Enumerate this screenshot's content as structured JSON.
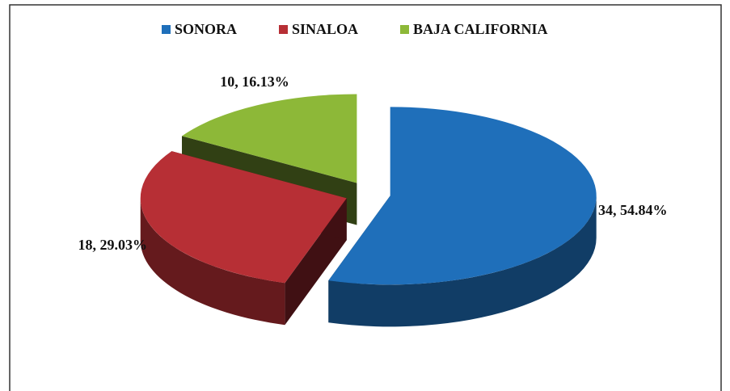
{
  "chart_data": {
    "type": "pie",
    "categories": [
      "SONORA",
      "SINALOA",
      "BAJA CALIFORNIA"
    ],
    "values": [
      34,
      18,
      10
    ],
    "value_labels": [
      "34, 54.84%",
      "18, 29.03%",
      "10, 16.13%"
    ],
    "colors": [
      "#1f6fba",
      "#b72f35",
      "#8db838"
    ],
    "legend": "top",
    "exploded": true,
    "three_d": true
  }
}
